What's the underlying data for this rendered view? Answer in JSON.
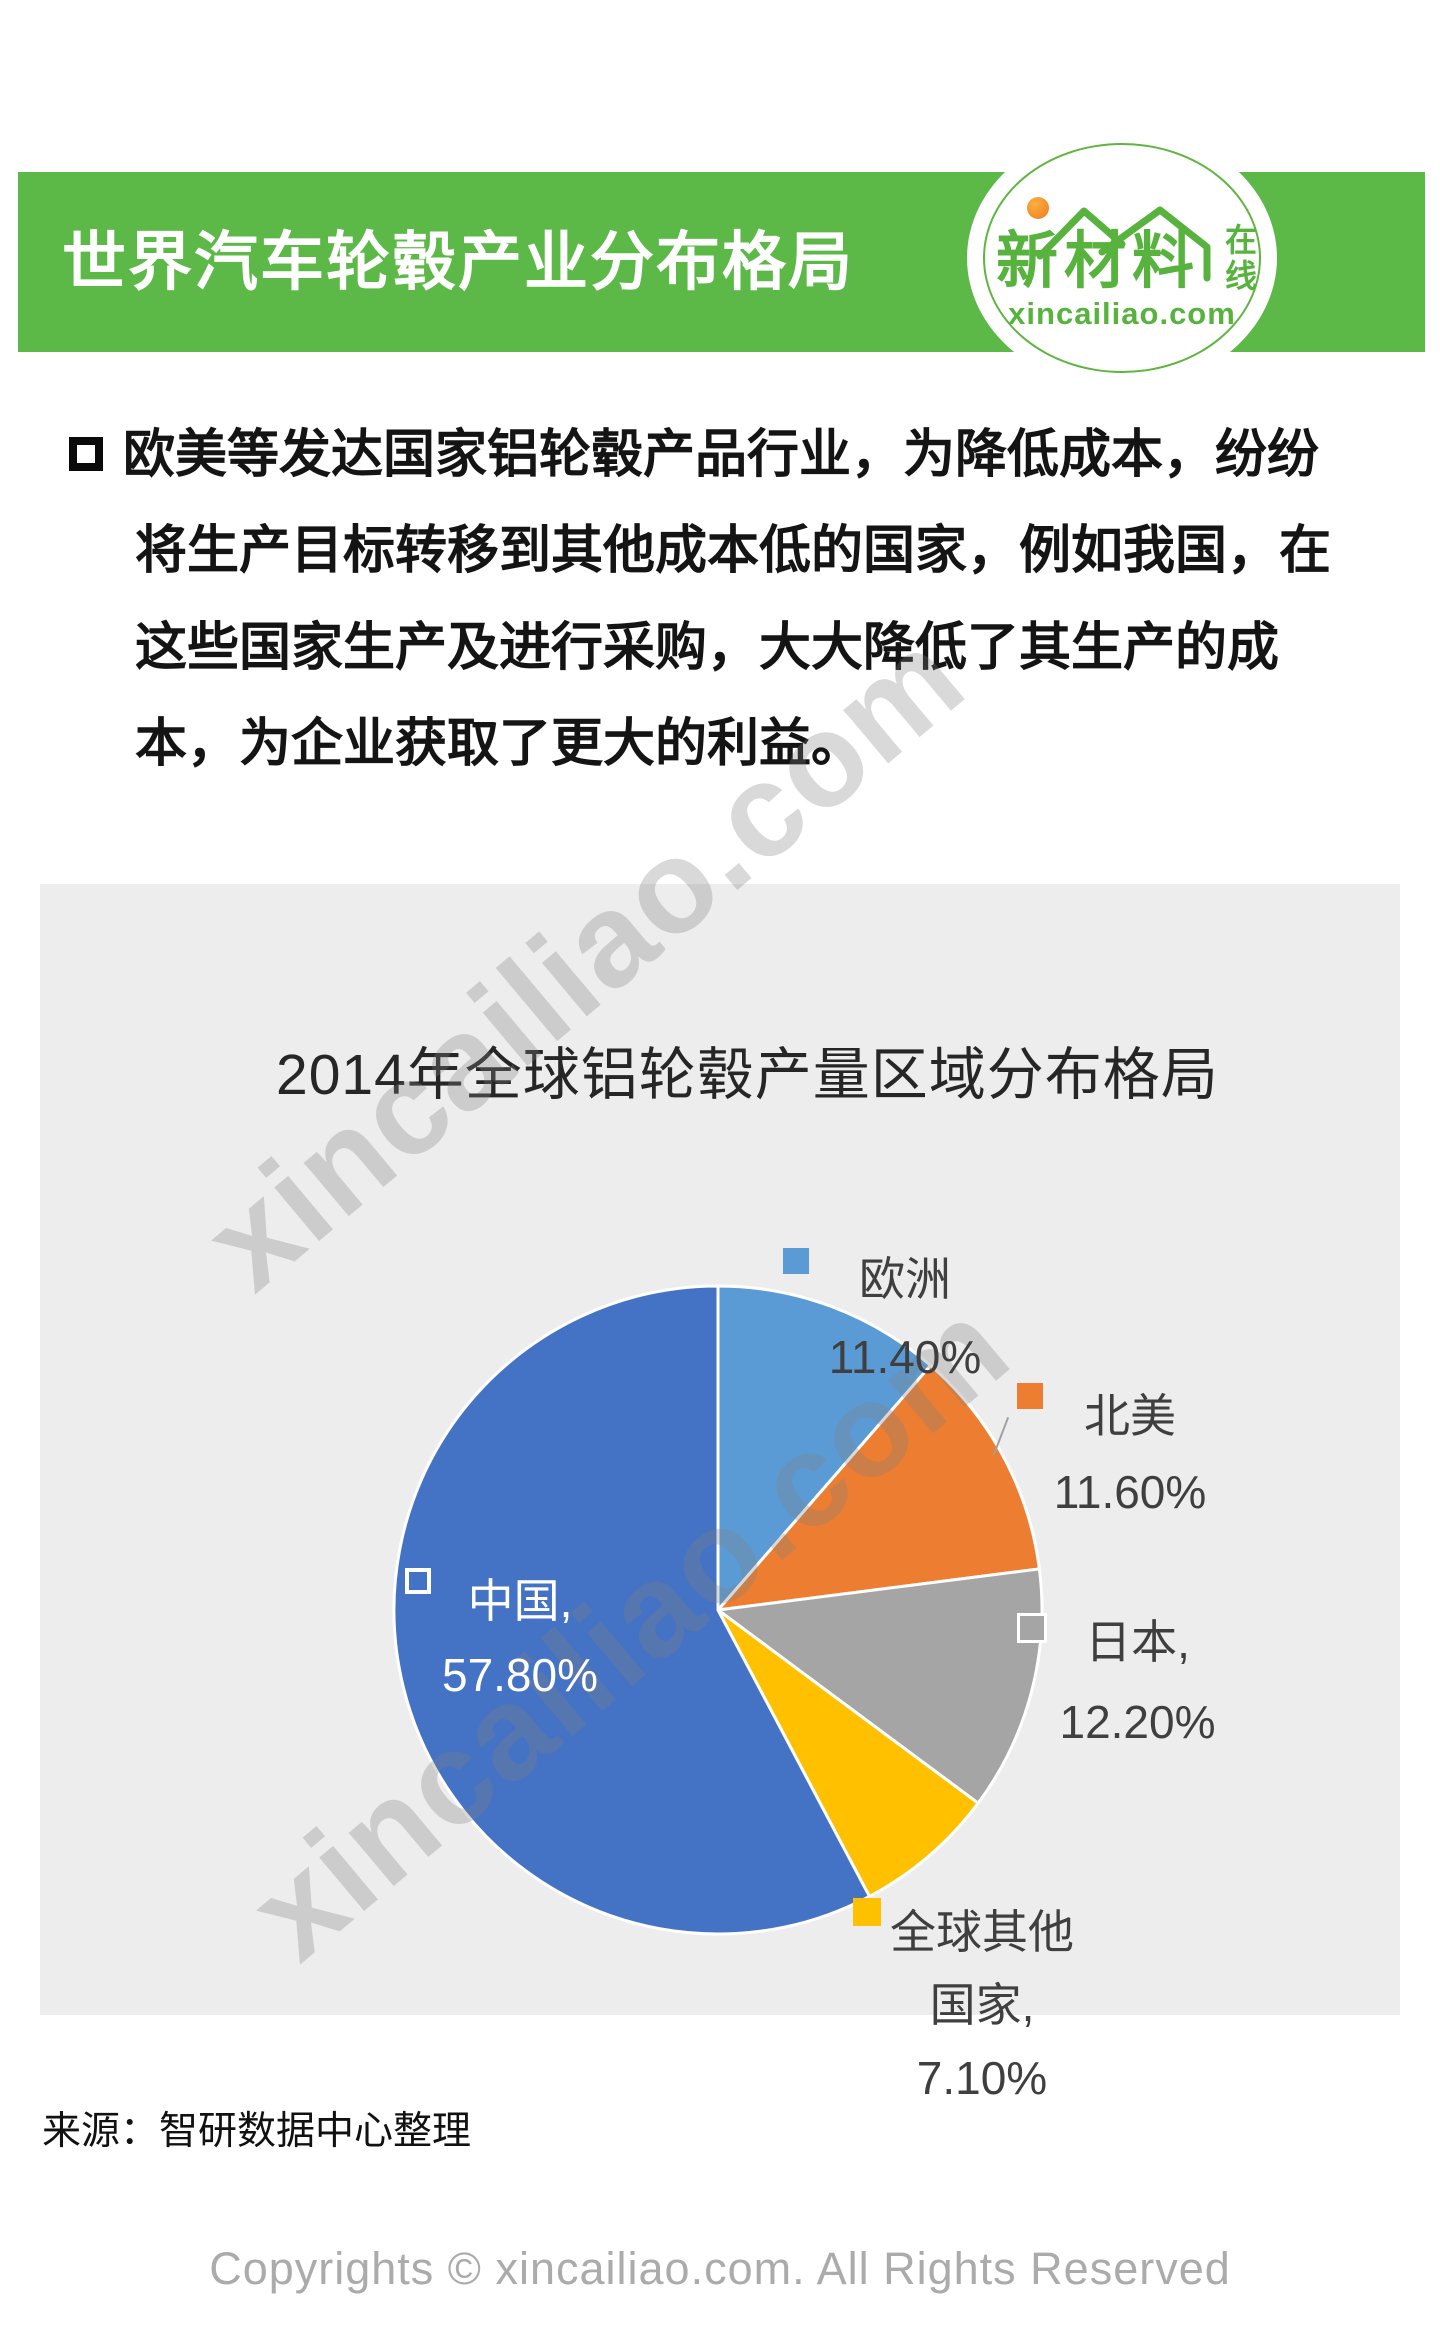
{
  "header": {
    "title": "世界汽车轮毂产业分布格局",
    "logo": {
      "name": "新材料",
      "suffix": "在线",
      "domain": "xincailiao.com"
    }
  },
  "intro": {
    "lines": [
      "欧美等发达国家铝轮毂产品行业，为降低成本，纷纷",
      "将生产目标转移到其他成本低的国家，例如我国，在",
      "这些国家生产及进行采购，大大降低了其生产的成",
      "本，为企业获取了更大的利益。"
    ]
  },
  "chart_data": {
    "type": "pie",
    "title": "2014年全球铝轮毂产量区域分布格局",
    "direction": "clockwise",
    "start_angle_deg": 0,
    "legend_position": "callouts",
    "slices": [
      {
        "label": "欧洲",
        "value": 11.4,
        "display": "11.40%",
        "color": "#5B9BD5"
      },
      {
        "label": "北美",
        "value": 11.6,
        "display": "11.60%",
        "color": "#ED7D31"
      },
      {
        "label": "日本",
        "value": 12.2,
        "display": "12.20%",
        "color": "#A5A5A5"
      },
      {
        "label": "全球其他国家",
        "value": 7.1,
        "display": "7.10%",
        "color": "#FFC000"
      },
      {
        "label": "中国",
        "value": 57.8,
        "display": "57.80%",
        "color": "#4472C4"
      }
    ],
    "callouts": {
      "europe": {
        "lines": [
          "欧洲",
          "11.40%"
        ]
      },
      "north_america": {
        "lines": [
          "北美",
          "11.60%"
        ]
      },
      "japan": {
        "lines": [
          "日本,",
          "12.20%"
        ]
      },
      "rest_of_world": {
        "lines": [
          "全球其他",
          "国家,",
          "7.10%"
        ]
      },
      "china": {
        "lines": [
          "中国,",
          "57.80%"
        ]
      }
    }
  },
  "source": "来源：智研数据中心整理",
  "footer": "Copyrights © xincailiao.com. All Rights Reserved",
  "watermark": {
    "text": "xincailiao.com"
  },
  "colors": {
    "header_green": "#5CB847",
    "logo_green": "#58B33E",
    "panel_gray": "#EDEDED",
    "label_text": "#3F3F3F",
    "watermark_gray": "#828282"
  }
}
